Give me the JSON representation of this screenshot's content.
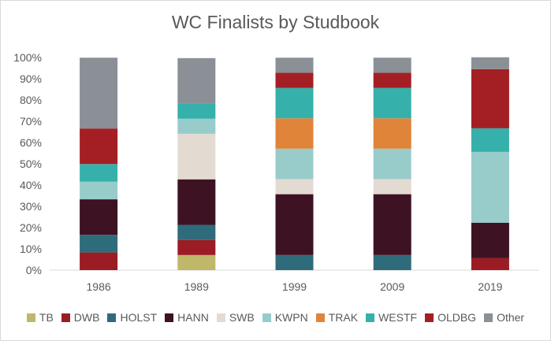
{
  "chart_data": {
    "type": "bar",
    "stacked": true,
    "title": "WC Finalists by Studbook",
    "xlabel": "",
    "ylabel": "",
    "ylim": [
      0,
      1
    ],
    "yticks": [
      "0%",
      "10%",
      "20%",
      "30%",
      "40%",
      "50%",
      "60%",
      "70%",
      "80%",
      "90%",
      "100%"
    ],
    "categories": [
      "1986",
      "1989",
      "1999",
      "2009",
      "2019"
    ],
    "grid": false,
    "legend_position": "bottom",
    "series": [
      {
        "name": "TB",
        "color": "#bfb76a",
        "values": [
          0,
          0.071,
          0,
          0,
          0
        ]
      },
      {
        "name": "DWB",
        "color": "#9b1c24",
        "values": [
          0.083,
          0.071,
          0,
          0,
          0.056
        ]
      },
      {
        "name": "HOLST",
        "color": "#2f6c7b",
        "values": [
          0.083,
          0.071,
          0.071,
          0.071,
          0
        ]
      },
      {
        "name": "HANN",
        "color": "#3d1223",
        "values": [
          0.167,
          0.214,
          0.286,
          0.286,
          0.167
        ]
      },
      {
        "name": "SWB",
        "color": "#e3dbd2",
        "values": [
          0,
          0.214,
          0.071,
          0.071,
          0
        ]
      },
      {
        "name": "KWPN",
        "color": "#97cccb",
        "values": [
          0.083,
          0.071,
          0.143,
          0.143,
          0.333
        ]
      },
      {
        "name": "TRAK",
        "color": "#e0843a",
        "values": [
          0,
          0,
          0.143,
          0.143,
          0
        ]
      },
      {
        "name": "WESTF",
        "color": "#36b0aa",
        "values": [
          0.083,
          0.071,
          0.143,
          0.143,
          0.111
        ]
      },
      {
        "name": "OLDBG",
        "color": "#a41f23",
        "values": [
          0.167,
          0,
          0.071,
          0.071,
          0.278
        ]
      },
      {
        "name": "Other",
        "color": "#8b9096",
        "values": [
          0.333,
          0.214,
          0.071,
          0.071,
          0.056
        ]
      }
    ]
  }
}
